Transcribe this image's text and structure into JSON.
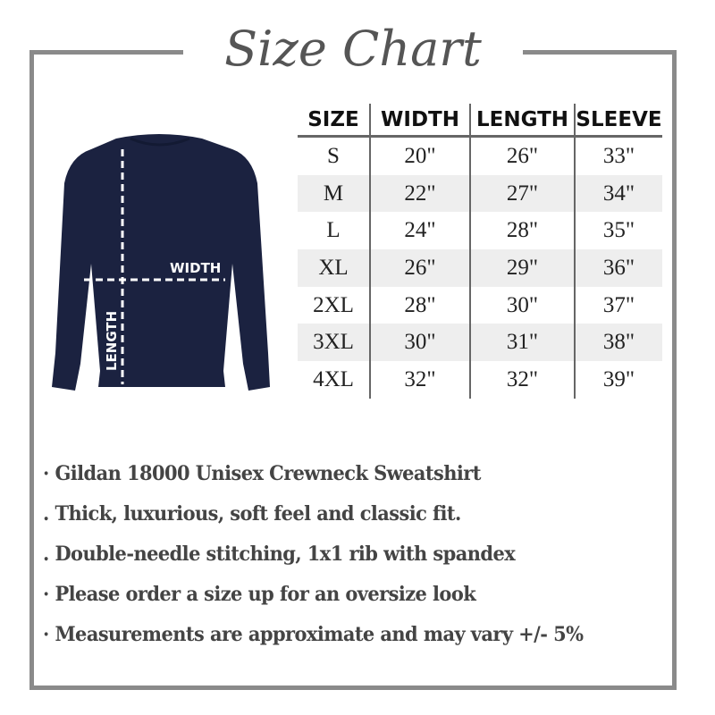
{
  "title": "Size Chart",
  "diagram": {
    "width_label": "WIDTH",
    "length_label": "LENGTH",
    "garment_color": "#1b2240"
  },
  "table": {
    "headers": [
      "SIZE",
      "WIDTH",
      "LENGTH",
      "SLEEVE"
    ],
    "rows": [
      [
        "S",
        "20\"",
        "26\"",
        "33\""
      ],
      [
        "M",
        "22\"",
        "27\"",
        "34\""
      ],
      [
        "L",
        "24\"",
        "28\"",
        "35\""
      ],
      [
        "XL",
        "26\"",
        "29\"",
        "36\""
      ],
      [
        "2XL",
        "28\"",
        "30\"",
        "37\""
      ],
      [
        "3XL",
        "30\"",
        "31\"",
        "38\""
      ],
      [
        "4XL",
        "32\"",
        "32\"",
        "39\""
      ]
    ]
  },
  "bullets": [
    "· Gildan 18000 Unisex Crewneck Sweatshirt",
    ". Thick, luxurious, soft feel and classic fit.",
    ". Double-needle stitching, 1x1 rib with spandex",
    "· Please order a size up for an oversize look",
    "· Measurements are approximate and may vary +/- 5%"
  ]
}
